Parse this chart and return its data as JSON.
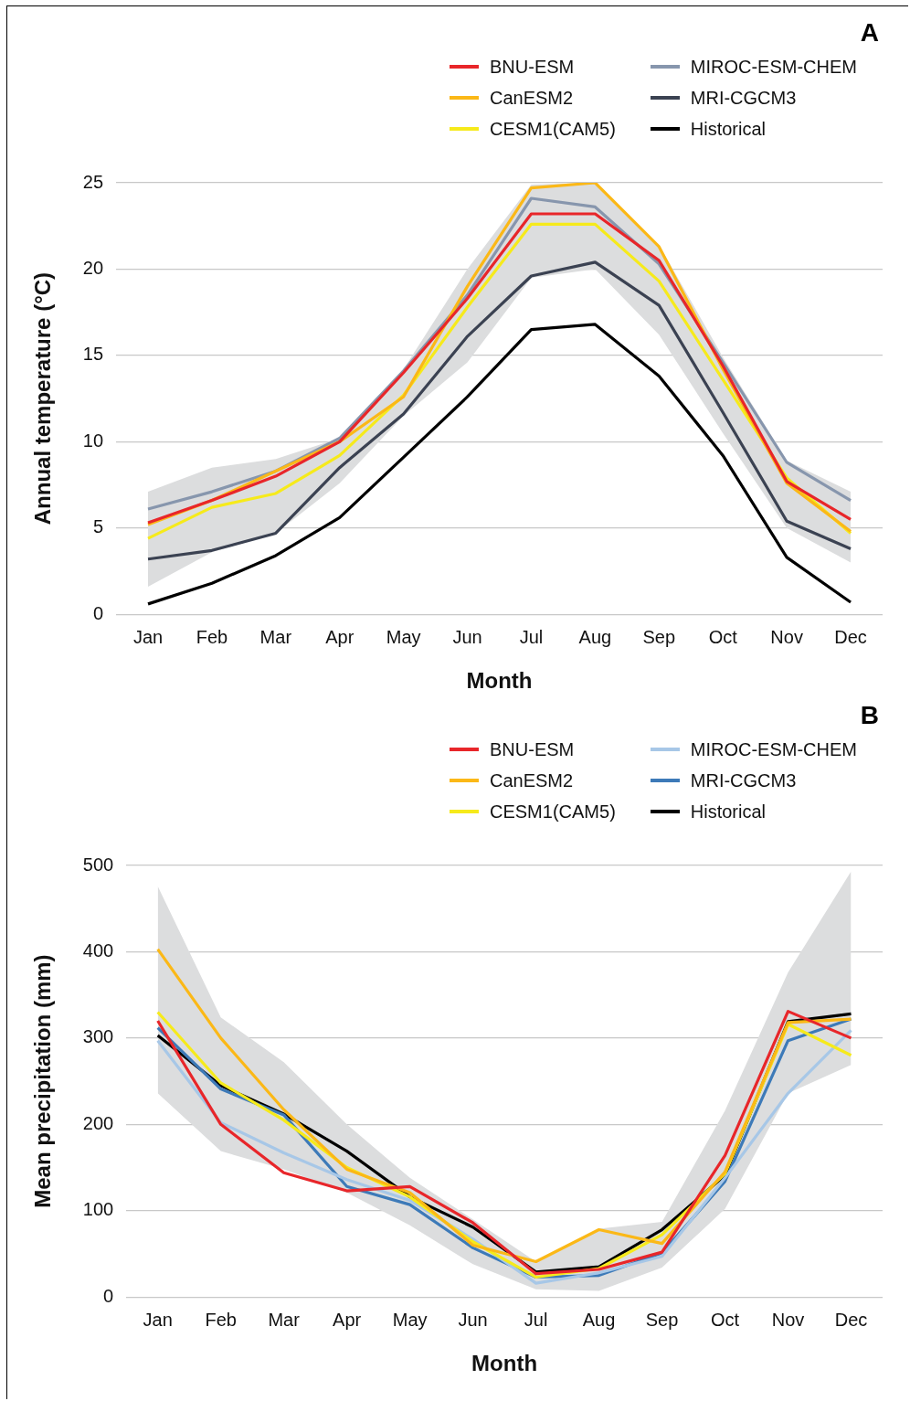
{
  "chart_data": [
    {
      "type": "line",
      "title": "A",
      "xlabel": "Month",
      "ylabel": "Annual temperature (°C)",
      "categories": [
        "Jan",
        "Feb",
        "Mar",
        "Apr",
        "May",
        "Jun",
        "Jul",
        "Aug",
        "Sep",
        "Oct",
        "Nov",
        "Dec"
      ],
      "ylim": [
        0,
        25
      ],
      "yticks": [
        0,
        5,
        10,
        15,
        20,
        25
      ],
      "grid": "y",
      "legend": "top right",
      "marker": "none",
      "line_style": "solid",
      "series": [
        {
          "type": "area",
          "color": "#dcddde",
          "lower": [
            1.6,
            3.6,
            4.7,
            7.6,
            11.5,
            14.6,
            19.5,
            20.0,
            16.2,
            10.5,
            5.0,
            3.0
          ],
          "upper": [
            7.1,
            8.5,
            9.0,
            10.2,
            14.2,
            20.0,
            24.9,
            25.0,
            21.4,
            14.9,
            8.9,
            7.1
          ],
          "values": [
            null,
            null,
            null,
            null,
            null,
            null,
            null,
            null,
            null,
            null,
            null,
            null
          ]
        },
        {
          "name": "BNU-ESM",
          "color": "#e8262a",
          "values": [
            5.3,
            6.6,
            8.0,
            10.0,
            14.0,
            18.3,
            23.2,
            23.2,
            20.5,
            14.4,
            7.7,
            5.5
          ]
        },
        {
          "name": "CanESM2",
          "color": "#fbb817",
          "values": [
            5.2,
            6.6,
            8.3,
            10.0,
            12.6,
            19.0,
            24.7,
            25.0,
            21.3,
            14.2,
            7.6,
            4.8
          ]
        },
        {
          "name": "CESM1(CAM5)",
          "color": "#f6ea1b",
          "values": [
            4.4,
            6.2,
            7.0,
            9.2,
            12.7,
            17.8,
            22.6,
            22.6,
            19.3,
            13.6,
            7.9,
            4.7
          ]
        },
        {
          "name": "MIROC-ESM-CHEM",
          "color": "#8796ad",
          "values": [
            6.1,
            7.1,
            8.3,
            10.2,
            14.1,
            18.5,
            24.1,
            23.6,
            20.3,
            14.6,
            8.8,
            6.6
          ]
        },
        {
          "name": "MRI-CGCM3",
          "color": "#3b4252",
          "values": [
            3.2,
            3.7,
            4.7,
            8.5,
            11.6,
            16.1,
            19.6,
            20.4,
            17.9,
            11.7,
            5.4,
            3.8
          ]
        },
        {
          "name": "Historical",
          "color": "#000000",
          "values": [
            0.6,
            1.8,
            3.4,
            5.6,
            9.1,
            12.6,
            16.5,
            16.8,
            13.8,
            9.2,
            3.3,
            0.7
          ]
        }
      ]
    },
    {
      "type": "line",
      "title": "B",
      "xlabel": "Month",
      "ylabel": "Mean precipitation (mm)",
      "categories": [
        "Jan",
        "Feb",
        "Mar",
        "Apr",
        "May",
        "Jun",
        "Jul",
        "Aug",
        "Sep",
        "Oct",
        "Nov",
        "Dec"
      ],
      "ylim": [
        0,
        500
      ],
      "yticks": [
        0,
        100,
        200,
        300,
        400,
        500
      ],
      "grid": "y",
      "legend": "top right",
      "marker": "none",
      "line_style": "solid",
      "series": [
        {
          "type": "area",
          "color": "#dcddde",
          "lower": [
            236,
            169,
            148,
            121,
            83,
            38,
            9,
            7,
            34,
            102,
            236,
            269
          ],
          "upper": [
            476,
            324,
            272,
            200,
            138,
            90,
            41,
            79,
            87,
            216,
            376,
            493
          ],
          "values": [
            null,
            null,
            null,
            null,
            null,
            null,
            null,
            null,
            null,
            null,
            null,
            null
          ]
        },
        {
          "name": "BNU-ESM",
          "color": "#e8262a",
          "values": [
            320,
            200,
            144,
            123,
            128,
            86,
            27,
            32,
            52,
            164,
            331,
            300
          ]
        },
        {
          "name": "CanESM2",
          "color": "#fbb817",
          "values": [
            403,
            300,
            217,
            148,
            121,
            60,
            41,
            78,
            62,
            145,
            318,
            322
          ]
        },
        {
          "name": "CESM1(CAM5)",
          "color": "#f6ea1b",
          "values": [
            330,
            248,
            205,
            150,
            116,
            64,
            23,
            33,
            72,
            143,
            316,
            280
          ]
        },
        {
          "name": "MIROC-ESM-CHEM",
          "color": "#a7c7e7",
          "values": [
            297,
            202,
            167,
            136,
            112,
            67,
            16,
            28,
            47,
            138,
            236,
            309
          ]
        },
        {
          "name": "MRI-CGCM3",
          "color": "#3d7ab8",
          "values": [
            312,
            241,
            211,
            128,
            107,
            57,
            23,
            25,
            51,
            134,
            297,
            322
          ]
        },
        {
          "name": "Historical",
          "color": "#000000",
          "values": [
            303,
            245,
            212,
            169,
            116,
            81,
            29,
            35,
            78,
            141,
            319,
            328
          ]
        }
      ]
    }
  ]
}
